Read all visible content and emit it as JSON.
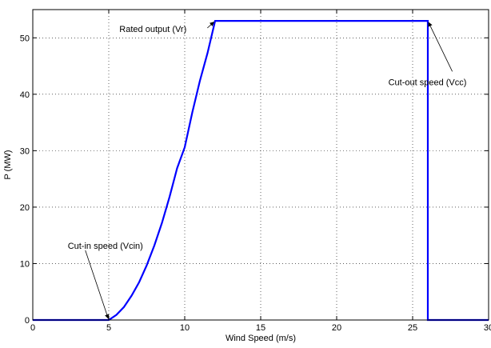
{
  "chart_data": {
    "type": "line",
    "title": "",
    "xlabel": "Wind Speed (m/s)",
    "ylabel": "P (MW)",
    "xlim": [
      0,
      30
    ],
    "ylim": [
      0,
      55
    ],
    "x_ticks": [
      0,
      5,
      10,
      15,
      20,
      25,
      30
    ],
    "y_ticks": [
      0,
      10,
      20,
      30,
      40,
      50
    ],
    "grid": true,
    "legend": null,
    "series": [
      {
        "color": "#0000ff",
        "x": [
          0,
          5,
          5.5,
          6,
          6.5,
          7,
          7.5,
          8,
          8.5,
          9,
          9.5,
          10,
          10.5,
          11,
          11.5,
          12,
          26,
          26,
          30
        ],
        "y": [
          0,
          0,
          0.9,
          2.3,
          4.3,
          6.7,
          9.7,
          13.2,
          17.2,
          21.8,
          26.9,
          30.6,
          36.8,
          42.4,
          47.3,
          53,
          53,
          0,
          0
        ]
      }
    ],
    "annotations": [
      {
        "text": "Cut-in speed (Vcin)",
        "point": [
          5,
          0
        ],
        "text_at": [
          2.3,
          13.2
        ]
      },
      {
        "text": "Rated output (Vr)",
        "point": [
          12,
          53
        ],
        "text_at": [
          5.7,
          51.6
        ]
      },
      {
        "text": "Cut-out speed (Vcc)",
        "point": [
          26,
          53
        ],
        "text_at": [
          23.4,
          42.2
        ]
      }
    ]
  }
}
